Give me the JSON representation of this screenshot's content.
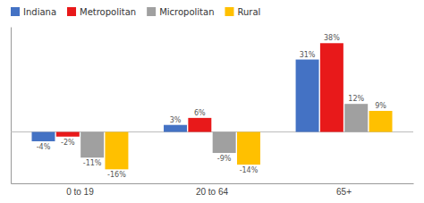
{
  "chart_data": {
    "type": "bar",
    "categories": [
      "0 to 19",
      "20 to 64",
      "65+"
    ],
    "series": [
      {
        "name": "Indiana",
        "color": "#4472C4",
        "values": [
          -4,
          3,
          31
        ],
        "value_labels": [
          "-4%",
          "3%",
          "31%"
        ]
      },
      {
        "name": "Metropolitan",
        "color": "#E8191A",
        "values": [
          -2,
          6,
          38
        ],
        "value_labels": [
          "-2%",
          "6%",
          "38%"
        ]
      },
      {
        "name": "Micropolitan",
        "color": "#A0A0A0",
        "values": [
          -11,
          -9,
          12
        ],
        "value_labels": [
          "-11%",
          "-9%",
          "12%"
        ]
      },
      {
        "name": "Rural",
        "color": "#FFC000",
        "values": [
          -16,
          -14,
          9
        ],
        "value_labels": [
          "-16%",
          "-14%",
          "9%"
        ]
      }
    ],
    "ylim": [
      -22,
      45
    ],
    "data_labels": true,
    "tick_labels": "x",
    "legend": "top-left"
  }
}
